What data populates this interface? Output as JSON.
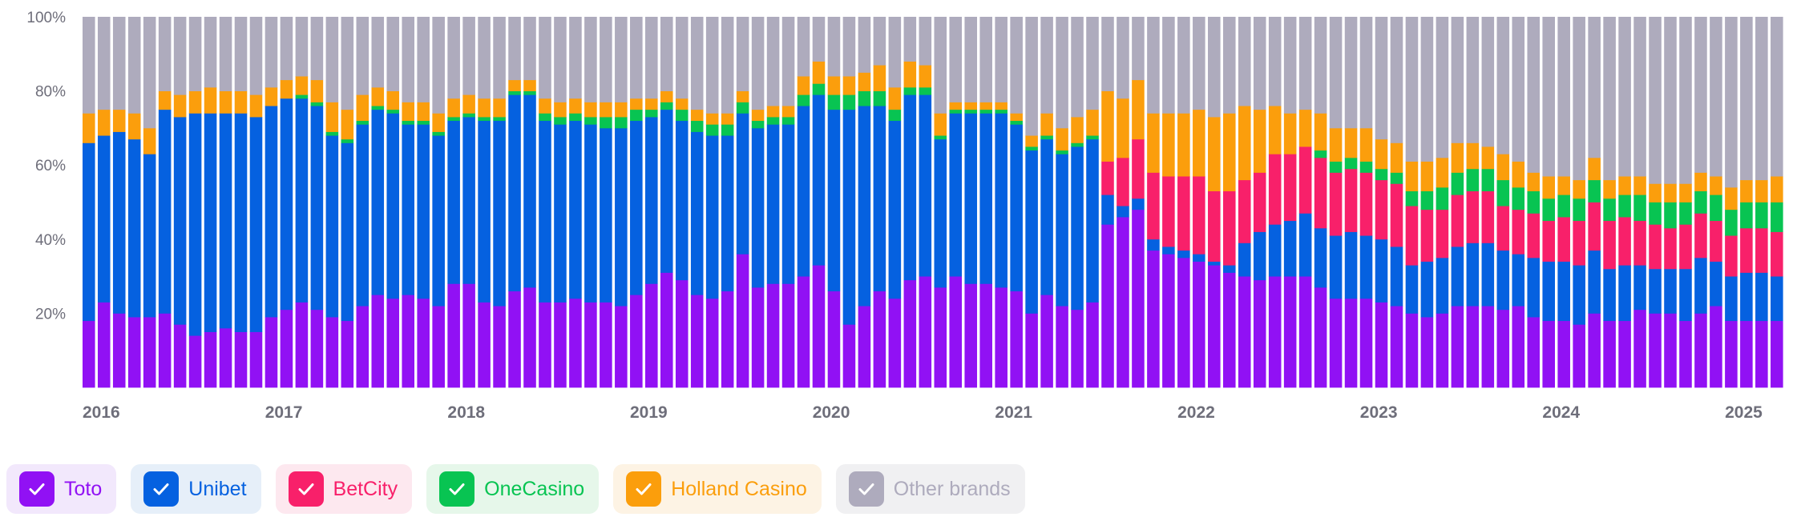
{
  "chart_data": {
    "type": "bar",
    "stacked": true,
    "normalized": true,
    "x_tick_labels": [
      "2016",
      "2017",
      "2018",
      "2019",
      "2020",
      "2021",
      "2022",
      "2023",
      "2024",
      "2025"
    ],
    "y_tick_labels": [
      "20%",
      "40%",
      "60%",
      "80%",
      "100%"
    ],
    "ylim": [
      0,
      100
    ],
    "period": "monthly",
    "start": "2016-01",
    "end": "2025-06",
    "series": [
      {
        "name": "Toto",
        "color": "#9111f4",
        "values": [
          18,
          23,
          20,
          19,
          19,
          20,
          17,
          14,
          15,
          16,
          15,
          15,
          19,
          21,
          23,
          21,
          19,
          18,
          22,
          25,
          24,
          25,
          24,
          22,
          28,
          28,
          23,
          22,
          26,
          27,
          23,
          23,
          24,
          23,
          23,
          22,
          25,
          28,
          31,
          29,
          25,
          24,
          26,
          36,
          27,
          28,
          28,
          30,
          33,
          26,
          17,
          22,
          26,
          24,
          29,
          30,
          27,
          30,
          28,
          28,
          27,
          26,
          20,
          25,
          22,
          21,
          23,
          44,
          46,
          48,
          37,
          36,
          35,
          34,
          33,
          31,
          30,
          29,
          30,
          30,
          30,
          27,
          24,
          24,
          24,
          23,
          22,
          20,
          19,
          20,
          22,
          22,
          22,
          21,
          22,
          19,
          18,
          18,
          17,
          20,
          18,
          18,
          21,
          20,
          20,
          18,
          20,
          22,
          18,
          18,
          18,
          18
        ]
      },
      {
        "name": "Unibet",
        "color": "#0561e0",
        "values": [
          48,
          45,
          49,
          48,
          44,
          55,
          56,
          60,
          59,
          58,
          59,
          58,
          57,
          57,
          55,
          55,
          49,
          48,
          49,
          50,
          50,
          46,
          47,
          46,
          44,
          45,
          49,
          50,
          53,
          52,
          49,
          48,
          48,
          48,
          47,
          48,
          47,
          45,
          44,
          43,
          44,
          44,
          42,
          38,
          43,
          43,
          43,
          46,
          46,
          49,
          58,
          54,
          50,
          48,
          50,
          49,
          40,
          44,
          46,
          46,
          47,
          45,
          44,
          42,
          41,
          44,
          44,
          8,
          3,
          3,
          3,
          2,
          2,
          2,
          1,
          2,
          9,
          13,
          14,
          15,
          17,
          16,
          17,
          18,
          17,
          17,
          16,
          13,
          15,
          15,
          16,
          17,
          17,
          16,
          14,
          16,
          16,
          16,
          16,
          17,
          14,
          15,
          12,
          12,
          12,
          14,
          15,
          12,
          12,
          13,
          13,
          12
        ]
      },
      {
        "name": "BetCity",
        "color": "#f8206a",
        "values": [
          0,
          0,
          0,
          0,
          0,
          0,
          0,
          0,
          0,
          0,
          0,
          0,
          0,
          0,
          0,
          0,
          0,
          0,
          0,
          0,
          0,
          0,
          0,
          0,
          0,
          0,
          0,
          0,
          0,
          0,
          0,
          0,
          0,
          0,
          0,
          0,
          0,
          0,
          0,
          0,
          0,
          0,
          0,
          0,
          0,
          0,
          0,
          0,
          0,
          0,
          0,
          0,
          0,
          0,
          0,
          0,
          0,
          0,
          0,
          0,
          0,
          0,
          0,
          0,
          0,
          0,
          0,
          9,
          13,
          16,
          18,
          19,
          20,
          21,
          19,
          20,
          17,
          16,
          19,
          18,
          18,
          19,
          17,
          17,
          17,
          16,
          17,
          16,
          14,
          13,
          14,
          14,
          14,
          12,
          12,
          12,
          11,
          12,
          12,
          13,
          13,
          13,
          12,
          12,
          11,
          12,
          12,
          11,
          11,
          12,
          12,
          12
        ]
      },
      {
        "name": "OneCasino",
        "color": "#08c452",
        "values": [
          0,
          0,
          0,
          0,
          0,
          0,
          0,
          0,
          0,
          0,
          0,
          0,
          0,
          0,
          1,
          1,
          1,
          1,
          1,
          1,
          1,
          1,
          1,
          1,
          1,
          1,
          1,
          1,
          1,
          1,
          2,
          2,
          2,
          2,
          3,
          3,
          3,
          2,
          2,
          3,
          3,
          3,
          3,
          3,
          2,
          2,
          2,
          3,
          3,
          4,
          4,
          4,
          4,
          3,
          2,
          2,
          1,
          1,
          1,
          1,
          1,
          1,
          1,
          1,
          1,
          1,
          1,
          0,
          0,
          0,
          0,
          0,
          0,
          0,
          0,
          0,
          0,
          0,
          0,
          0,
          0,
          2,
          3,
          3,
          3,
          3,
          3,
          4,
          5,
          6,
          6,
          6,
          6,
          7,
          6,
          6,
          6,
          6,
          6,
          6,
          6,
          6,
          7,
          6,
          7,
          6,
          6,
          7,
          7,
          7,
          7,
          8
        ]
      },
      {
        "name": "Holland Casino",
        "color": "#fb9e0c",
        "values": [
          8,
          7,
          6,
          7,
          7,
          5,
          6,
          6,
          7,
          6,
          6,
          6,
          5,
          5,
          5,
          6,
          8,
          8,
          7,
          5,
          5,
          5,
          5,
          5,
          5,
          5,
          5,
          5,
          3,
          3,
          4,
          4,
          4,
          4,
          4,
          4,
          3,
          3,
          3,
          3,
          3,
          3,
          3,
          3,
          3,
          3,
          3,
          5,
          6,
          5,
          5,
          5,
          7,
          6,
          7,
          6,
          6,
          2,
          2,
          2,
          2,
          2,
          3,
          6,
          6,
          7,
          7,
          19,
          16,
          16,
          16,
          17,
          17,
          18,
          20,
          21,
          20,
          17,
          13,
          11,
          10,
          10,
          9,
          8,
          9,
          8,
          8,
          8,
          8,
          8,
          8,
          7,
          6,
          7,
          7,
          5,
          6,
          5,
          5,
          6,
          5,
          5,
          5,
          5,
          5,
          5,
          5,
          5,
          6,
          6,
          6,
          7
        ]
      },
      {
        "name": "Other brands",
        "color": "#aeabbd",
        "values": [
          26,
          25,
          25,
          26,
          30,
          20,
          21,
          20,
          19,
          20,
          20,
          21,
          19,
          17,
          16,
          17,
          23,
          25,
          21,
          19,
          20,
          23,
          23,
          26,
          22,
          21,
          22,
          22,
          17,
          17,
          22,
          23,
          22,
          23,
          23,
          23,
          22,
          22,
          20,
          22,
          25,
          26,
          26,
          20,
          25,
          24,
          24,
          16,
          12,
          16,
          16,
          15,
          13,
          19,
          12,
          13,
          26,
          23,
          23,
          23,
          23,
          26,
          32,
          26,
          30,
          27,
          25,
          20,
          22,
          17,
          26,
          26,
          26,
          25,
          27,
          26,
          24,
          25,
          24,
          26,
          25,
          26,
          30,
          30,
          30,
          33,
          34,
          39,
          39,
          38,
          34,
          34,
          35,
          37,
          39,
          42,
          43,
          43,
          44,
          38,
          44,
          43,
          43,
          45,
          45,
          45,
          42,
          43,
          46,
          44,
          44,
          43
        ]
      }
    ]
  },
  "legend": {
    "items": [
      {
        "label": "Toto",
        "color": "#9111f4",
        "bg": "#f2e8fc"
      },
      {
        "label": "Unibet",
        "color": "#0561e0",
        "bg": "#e6eff9"
      },
      {
        "label": "BetCity",
        "color": "#f8206a",
        "bg": "#fde8ef"
      },
      {
        "label": "OneCasino",
        "color": "#08c452",
        "bg": "#e6f7ea"
      },
      {
        "label": "Holland Casino",
        "color": "#fb9e0c",
        "bg": "#fdf3e4"
      },
      {
        "label": "Other brands",
        "color": "#aeabbd",
        "bg": "#f0f0f2"
      }
    ]
  }
}
